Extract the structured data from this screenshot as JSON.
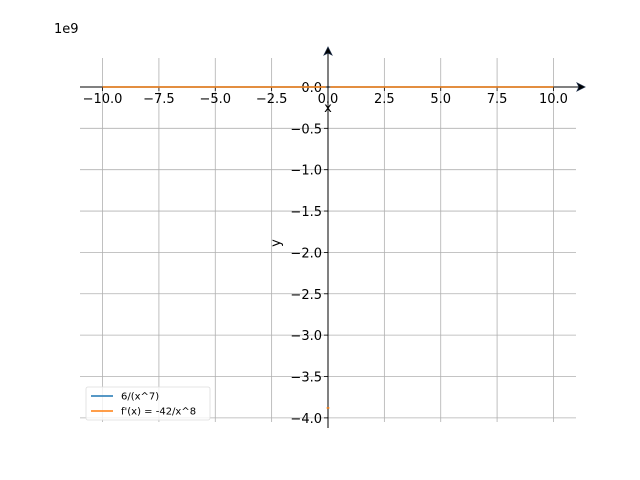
{
  "chart_data": {
    "type": "line",
    "title": "",
    "xlabel": "x",
    "ylabel": "y",
    "offset_text": "1e9",
    "xlim": [
      -11,
      11
    ],
    "ylim": [
      -4.05,
      0.35
    ],
    "grid": true,
    "legend_placement": "lower-left",
    "x_ticks": [
      -10,
      -7.5,
      -5,
      -2.5,
      0,
      2.5,
      5,
      7.5,
      10
    ],
    "x_tick_labels": [
      "−10.0",
      "−7.5",
      "−5.0",
      "−2.5",
      "0.0",
      "2.5",
      "5.0",
      "7.5",
      "10.0"
    ],
    "y_ticks": [
      0,
      -0.5,
      -1,
      -1.5,
      -2,
      -2.5,
      -3,
      -3.5,
      -4
    ],
    "y_tick_labels": [
      "0.0",
      "−0.5",
      "−1.0",
      "−1.5",
      "−2.0",
      "−2.5",
      "−3.0",
      "−3.5",
      "−4.0"
    ],
    "series": [
      {
        "name": "6/(x^7)",
        "color": "#1f77b4",
        "segments": [
          [
            [
              -10,
              0
            ],
            [
              -7.5,
              0
            ],
            [
              -5,
              0
            ],
            [
              -2.5,
              0
            ],
            [
              -0.1,
              0
            ]
          ],
          [
            [
              0.1,
              0
            ],
            [
              2.5,
              0
            ],
            [
              5,
              0
            ],
            [
              7.5,
              0
            ],
            [
              10,
              0
            ]
          ]
        ]
      },
      {
        "name": "f'(x) = -42/x^8",
        "color": "#ff7f0e",
        "segments": [
          [
            [
              -10,
              0
            ],
            [
              -7.5,
              0
            ],
            [
              -5,
              0
            ],
            [
              -2.5,
              0
            ],
            [
              -0.1,
              0
            ]
          ],
          [
            [
              0.1,
              0
            ],
            [
              2.5,
              0
            ],
            [
              5,
              0
            ],
            [
              7.5,
              0
            ],
            [
              10,
              0
            ]
          ],
          [
            [
              -0.06,
              -3.88
            ],
            [
              0.06,
              -3.88
            ]
          ]
        ]
      }
    ]
  }
}
